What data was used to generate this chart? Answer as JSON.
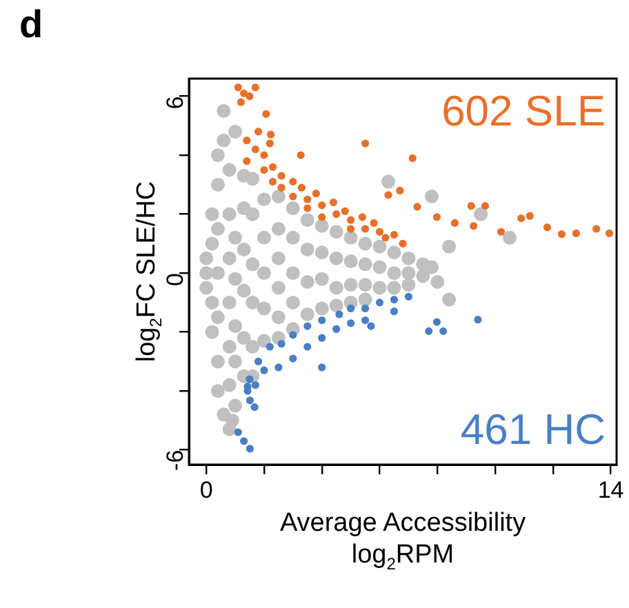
{
  "chart_data": {
    "type": "scatter",
    "title": "d",
    "xlabel": "Average Accessibility\nlog$_{2}$RPM",
    "ylabel": "log$_{2}$FC SLE/HC",
    "xlim": [
      -0.6,
      14.2
    ],
    "ylim": [
      -6.5,
      6.6
    ],
    "xticks": [
      0,
      {
        "value": 2,
        "label": null
      },
      {
        "value": 4,
        "label": null
      },
      {
        "value": 6,
        "label": null
      },
      {
        "value": 8,
        "label": null
      },
      {
        "value": 10,
        "label": null
      },
      {
        "value": 12,
        "label": null
      },
      14
    ],
    "yticks": [
      -6,
      {
        "value": -4,
        "label": null
      },
      {
        "value": -2,
        "label": null
      },
      0,
      {
        "value": 2,
        "label": null
      },
      {
        "value": 4,
        "label": null
      },
      6
    ],
    "grid": false,
    "legend": false,
    "marker": "circle",
    "series": [
      {
        "color": "#c0c0c0",
        "x": [
          0.0,
          0.0,
          0.0,
          0.2,
          0.2,
          0.2,
          0.2,
          0.4,
          0.4,
          0.4,
          0.4,
          0.4,
          0.4,
          0.4,
          0.6,
          0.6,
          0.6,
          0.8,
          0.8,
          0.8,
          0.8,
          0.8,
          0.8,
          0.8,
          1.0,
          1.0,
          1.0,
          1.0,
          1.0,
          1.0,
          1.3,
          1.3,
          1.3,
          1.3,
          1.3,
          1.3,
          1.6,
          1.6,
          1.6,
          1.6,
          1.6,
          1.6,
          2.0,
          2.0,
          2.0,
          2.0,
          2.0,
          2.5,
          2.5,
          2.5,
          2.5,
          2.5,
          2.5,
          3.0,
          3.0,
          3.0,
          3.0,
          3.0,
          3.5,
          3.5,
          3.5,
          3.5,
          4.0,
          4.0,
          4.0,
          4.0,
          4.5,
          4.5,
          4.5,
          4.5,
          5.0,
          5.0,
          5.0,
          5.0,
          5.5,
          5.5,
          5.5,
          5.5,
          6.0,
          6.0,
          6.0,
          6.5,
          6.5,
          6.5,
          7.0,
          7.0,
          7.0,
          7.5,
          7.5,
          7.8,
          8.4,
          8.4,
          8.0,
          6.3,
          7.8,
          9.5,
          10.5,
          0.9
        ],
        "values": [
          0.5,
          0,
          -0.5,
          2,
          1,
          -1,
          -2,
          4,
          3,
          1.5,
          0,
          -1.5,
          -3,
          -4,
          5.5,
          4.5,
          -4.8,
          3.5,
          2,
          0.5,
          -1,
          -2.5,
          -3.8,
          -5.3,
          4.8,
          1.2,
          -0.2,
          -1.8,
          -3,
          -4.5,
          3.3,
          2.2,
          0.8,
          -0.6,
          -2.2,
          -3.5,
          3.2,
          2,
          0.3,
          -1,
          -2.5,
          -3.5,
          2.5,
          1.2,
          0,
          -1.2,
          -2.3,
          2.6,
          1.5,
          0.5,
          -0.5,
          -1.5,
          -2.2,
          2.2,
          1.2,
          0,
          -1,
          -1.9,
          1.8,
          0.8,
          -0.3,
          -1.4,
          1.6,
          0.7,
          -0.2,
          -1.2,
          1.4,
          0.5,
          -0.5,
          -1.1,
          1.2,
          0.4,
          -0.4,
          -1,
          1.0,
          0.3,
          -0.4,
          -0.9,
          0.9,
          0.2,
          -0.5,
          0.7,
          0,
          -0.5,
          0.5,
          0,
          -0.4,
          0.3,
          -0.1,
          0.2,
          0.9,
          -0.9,
          -0.3,
          3.1,
          2.6,
          2.0,
          1.2,
          -5.0
        ]
      },
      {
        "name": "602 SLE",
        "color": "#e8702a",
        "x": [
          1.1,
          1.3,
          1.5,
          1.7,
          1.2,
          1.4,
          1.4,
          1.7,
          2.0,
          2.0,
          2.3,
          2.3,
          2.6,
          2.6,
          3.0,
          3.0,
          3.3,
          3.5,
          3.5,
          3.8,
          4.0,
          4.0,
          4.4,
          4.5,
          4.8,
          5.0,
          5.0,
          5.4,
          5.5,
          5.8,
          6.0,
          6.2,
          6.5,
          6.8,
          1.8,
          2.2,
          2.07,
          2.23,
          3.27,
          5.5,
          7.14,
          6.7,
          6.3,
          7.3,
          7.98,
          9.17,
          9.65,
          8.6,
          9.25,
          10.2,
          10.9,
          11.2,
          11.8,
          12.3,
          12.8,
          13.5,
          13.95
        ],
        "values": [
          6.3,
          6.1,
          6.0,
          6.3,
          5.8,
          4.5,
          3.8,
          4.2,
          4.0,
          3.5,
          3.6,
          3.1,
          3.3,
          2.9,
          3.1,
          2.6,
          2.9,
          2.5,
          2.2,
          2.7,
          2.3,
          1.9,
          2.4,
          2.0,
          2.1,
          1.8,
          1.5,
          1.9,
          1.5,
          1.7,
          1.4,
          1.2,
          1.3,
          1.0,
          4.8,
          4.4,
          5.4,
          4.7,
          4.0,
          4.4,
          3.9,
          2.8,
          2.65,
          2.25,
          1.9,
          2.28,
          2.28,
          1.7,
          1.6,
          1.4,
          1.86,
          1.94,
          1.55,
          1.32,
          1.35,
          1.5,
          1.35
        ]
      },
      {
        "name": "461 HC",
        "color": "#4a7fc4",
        "x": [
          7.0,
          6.5,
          6.0,
          5.5,
          5.5,
          5.0,
          5.0,
          4.6,
          4.5,
          4.0,
          4.0,
          3.5,
          3.5,
          3.0,
          3.0,
          2.6,
          2.5,
          2.2,
          2.0,
          1.8,
          1.7,
          1.5,
          1.43,
          6.5,
          5.7,
          7.98,
          7.7,
          8.2,
          9.4,
          4.0,
          1.43,
          1.51,
          1.67,
          1.1,
          1.3,
          1.51
        ],
        "values": [
          -0.8,
          -0.9,
          -1.0,
          -1.2,
          -1.6,
          -1.2,
          -1.7,
          -1.4,
          -1.9,
          -1.6,
          -2.2,
          -1.8,
          -2.5,
          -2.1,
          -2.9,
          -2.4,
          -3.2,
          -2.5,
          -3.3,
          -3.0,
          -3.8,
          -3.6,
          -4.0,
          -1.3,
          -1.8,
          -1.66,
          -1.97,
          -1.97,
          -1.58,
          -3.2,
          -3.85,
          -4.32,
          -4.55,
          -5.4,
          -5.7,
          -5.96
        ]
      }
    ]
  }
}
